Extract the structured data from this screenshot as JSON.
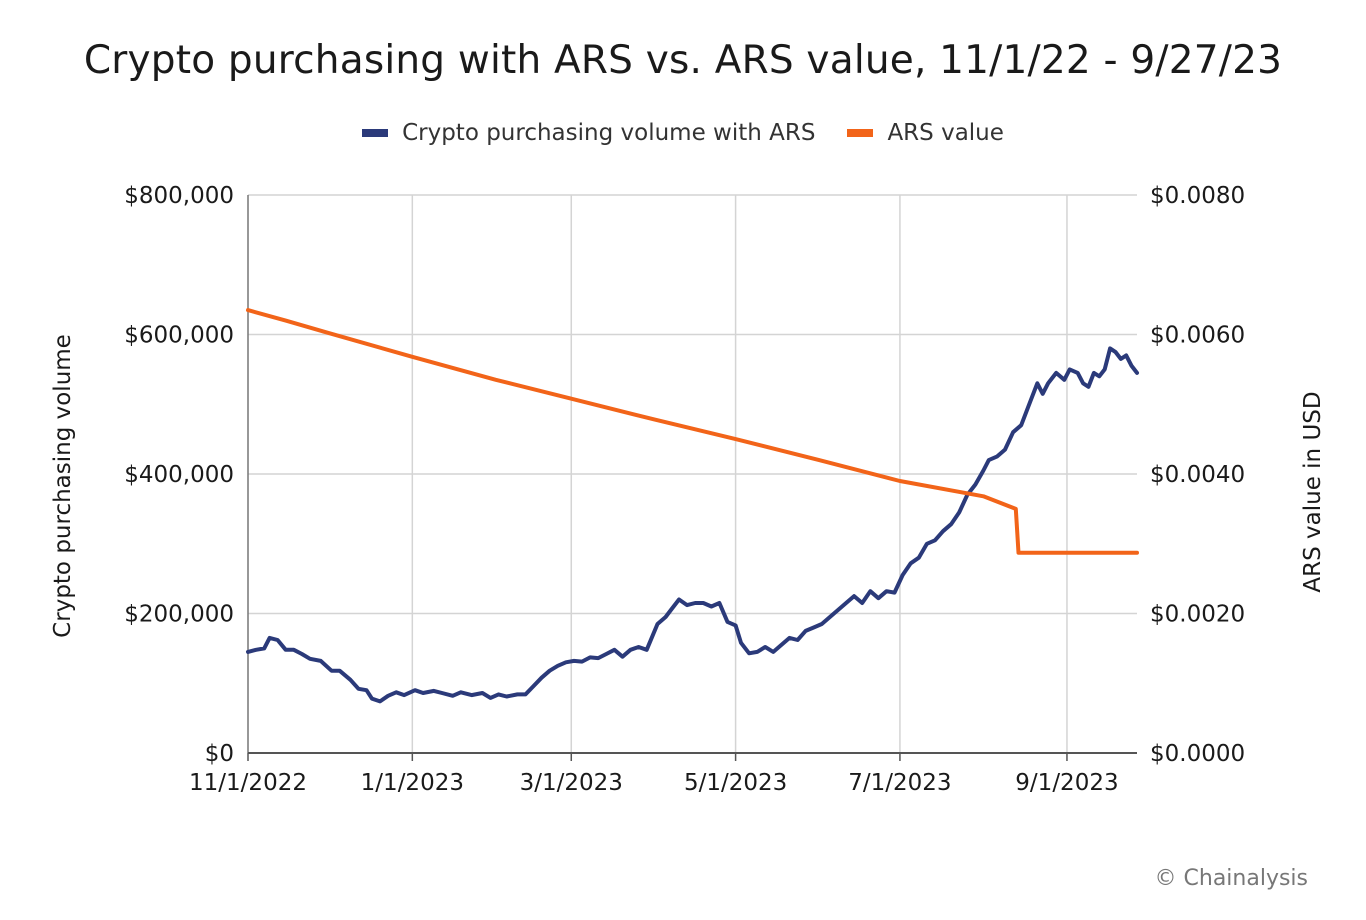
{
  "chart_data": {
    "type": "line",
    "title": "Crypto purchasing with ARS vs. ARS value, 11/1/22 - 9/27/23",
    "ylabel": "Crypto purchasing volume",
    "y2label": "ARS value in USD",
    "ylim": [
      0,
      800000
    ],
    "y2lim": [
      0,
      0.008
    ],
    "y_ticks": [
      "$0",
      "$200,000",
      "$400,000",
      "$600,000",
      "$800,000"
    ],
    "y2_ticks": [
      "$0.0000",
      "$0.0020",
      "$0.0040",
      "$0.0060",
      "$0.0080"
    ],
    "x_ticks": [
      "11/1/2022",
      "1/1/2023",
      "3/1/2023",
      "5/1/2023",
      "7/1/2023",
      "9/1/2023"
    ],
    "x_tick_dates": [
      "2022-11-01",
      "2023-01-01",
      "2023-03-01",
      "2023-05-01",
      "2023-07-01",
      "2023-09-01"
    ],
    "x_range": [
      "2022-11-01",
      "2023-09-27"
    ],
    "grid": true,
    "legend_position": "top-center",
    "series": [
      {
        "name": "Crypto purchasing volume with ARS",
        "axis": "left",
        "color": "#2b3a7a",
        "points": [
          [
            "2022-11-01",
            145000
          ],
          [
            "2022-11-04",
            148000
          ],
          [
            "2022-11-07",
            150000
          ],
          [
            "2022-11-09",
            165000
          ],
          [
            "2022-11-12",
            162000
          ],
          [
            "2022-11-15",
            148000
          ],
          [
            "2022-11-18",
            148000
          ],
          [
            "2022-11-21",
            142000
          ],
          [
            "2022-11-24",
            135000
          ],
          [
            "2022-11-28",
            132000
          ],
          [
            "2022-12-02",
            118000
          ],
          [
            "2022-12-05",
            118000
          ],
          [
            "2022-12-09",
            105000
          ],
          [
            "2022-12-12",
            92000
          ],
          [
            "2022-12-15",
            90000
          ],
          [
            "2022-12-17",
            78000
          ],
          [
            "2022-12-20",
            74000
          ],
          [
            "2022-12-23",
            82000
          ],
          [
            "2022-12-26",
            87000
          ],
          [
            "2022-12-29",
            83000
          ],
          [
            "2023-01-02",
            90000
          ],
          [
            "2023-01-05",
            86000
          ],
          [
            "2023-01-09",
            89000
          ],
          [
            "2023-01-12",
            86000
          ],
          [
            "2023-01-16",
            82000
          ],
          [
            "2023-01-19",
            87000
          ],
          [
            "2023-01-23",
            83000
          ],
          [
            "2023-01-27",
            86000
          ],
          [
            "2023-01-30",
            79000
          ],
          [
            "2023-02-02",
            84000
          ],
          [
            "2023-02-05",
            81000
          ],
          [
            "2023-02-09",
            84000
          ],
          [
            "2023-02-12",
            84000
          ],
          [
            "2023-02-15",
            96000
          ],
          [
            "2023-02-18",
            108000
          ],
          [
            "2023-02-21",
            118000
          ],
          [
            "2023-02-24",
            125000
          ],
          [
            "2023-02-27",
            130000
          ],
          [
            "2023-03-02",
            132000
          ],
          [
            "2023-03-05",
            131000
          ],
          [
            "2023-03-08",
            137000
          ],
          [
            "2023-03-11",
            136000
          ],
          [
            "2023-03-14",
            142000
          ],
          [
            "2023-03-17",
            148000
          ],
          [
            "2023-03-20",
            138000
          ],
          [
            "2023-03-23",
            148000
          ],
          [
            "2023-03-26",
            152000
          ],
          [
            "2023-03-29",
            148000
          ],
          [
            "2023-04-02",
            185000
          ],
          [
            "2023-04-05",
            195000
          ],
          [
            "2023-04-07",
            205000
          ],
          [
            "2023-04-10",
            220000
          ],
          [
            "2023-04-13",
            212000
          ],
          [
            "2023-04-16",
            215000
          ],
          [
            "2023-04-19",
            215000
          ],
          [
            "2023-04-22",
            210000
          ],
          [
            "2023-04-25",
            215000
          ],
          [
            "2023-04-28",
            188000
          ],
          [
            "2023-05-01",
            183000
          ],
          [
            "2023-05-03",
            158000
          ],
          [
            "2023-05-06",
            143000
          ],
          [
            "2023-05-09",
            145000
          ],
          [
            "2023-05-12",
            152000
          ],
          [
            "2023-05-15",
            145000
          ],
          [
            "2023-05-18",
            155000
          ],
          [
            "2023-05-21",
            165000
          ],
          [
            "2023-05-24",
            162000
          ],
          [
            "2023-05-27",
            175000
          ],
          [
            "2023-05-30",
            180000
          ],
          [
            "2023-06-02",
            185000
          ],
          [
            "2023-06-05",
            195000
          ],
          [
            "2023-06-08",
            205000
          ],
          [
            "2023-06-11",
            215000
          ],
          [
            "2023-06-14",
            225000
          ],
          [
            "2023-06-17",
            215000
          ],
          [
            "2023-06-20",
            232000
          ],
          [
            "2023-06-23",
            222000
          ],
          [
            "2023-06-26",
            232000
          ],
          [
            "2023-06-29",
            230000
          ],
          [
            "2023-07-02",
            255000
          ],
          [
            "2023-07-05",
            272000
          ],
          [
            "2023-07-08",
            280000
          ],
          [
            "2023-07-11",
            300000
          ],
          [
            "2023-07-14",
            305000
          ],
          [
            "2023-07-17",
            318000
          ],
          [
            "2023-07-20",
            328000
          ],
          [
            "2023-07-23",
            345000
          ],
          [
            "2023-07-26",
            370000
          ],
          [
            "2023-07-29",
            385000
          ],
          [
            "2023-08-01",
            405000
          ],
          [
            "2023-08-03",
            420000
          ],
          [
            "2023-08-06",
            425000
          ],
          [
            "2023-08-09",
            435000
          ],
          [
            "2023-08-12",
            460000
          ],
          [
            "2023-08-15",
            470000
          ],
          [
            "2023-08-18",
            500000
          ],
          [
            "2023-08-21",
            530000
          ],
          [
            "2023-08-23",
            515000
          ],
          [
            "2023-08-25",
            530000
          ],
          [
            "2023-08-28",
            545000
          ],
          [
            "2023-08-31",
            535000
          ],
          [
            "2023-09-02",
            550000
          ],
          [
            "2023-09-05",
            545000
          ],
          [
            "2023-09-07",
            530000
          ],
          [
            "2023-09-09",
            525000
          ],
          [
            "2023-09-11",
            545000
          ],
          [
            "2023-09-13",
            540000
          ],
          [
            "2023-09-15",
            550000
          ],
          [
            "2023-09-17",
            580000
          ],
          [
            "2023-09-19",
            575000
          ],
          [
            "2023-09-21",
            565000
          ],
          [
            "2023-09-23",
            570000
          ],
          [
            "2023-09-25",
            555000
          ],
          [
            "2023-09-27",
            545000
          ]
        ]
      },
      {
        "name": "ARS value",
        "axis": "right",
        "color": "#f26419",
        "points": [
          [
            "2022-11-01",
            0.00635
          ],
          [
            "2022-11-15",
            0.0062
          ],
          [
            "2022-12-01",
            0.00602
          ],
          [
            "2023-01-01",
            0.00568
          ],
          [
            "2023-02-01",
            0.00535
          ],
          [
            "2023-03-01",
            0.00508
          ],
          [
            "2023-04-01",
            0.00478
          ],
          [
            "2023-05-01",
            0.0045
          ],
          [
            "2023-06-01",
            0.0042
          ],
          [
            "2023-07-01",
            0.0039
          ],
          [
            "2023-08-01",
            0.00368
          ],
          [
            "2023-08-13",
            0.0035
          ],
          [
            "2023-08-14",
            0.00287
          ],
          [
            "2023-09-27",
            0.00287
          ]
        ]
      }
    ]
  },
  "legend": {
    "items": [
      {
        "label": "Crypto purchasing volume with ARS",
        "color": "#2b3a7a"
      },
      {
        "label": "ARS value",
        "color": "#f26419"
      }
    ]
  },
  "attribution": "© Chainalysis"
}
